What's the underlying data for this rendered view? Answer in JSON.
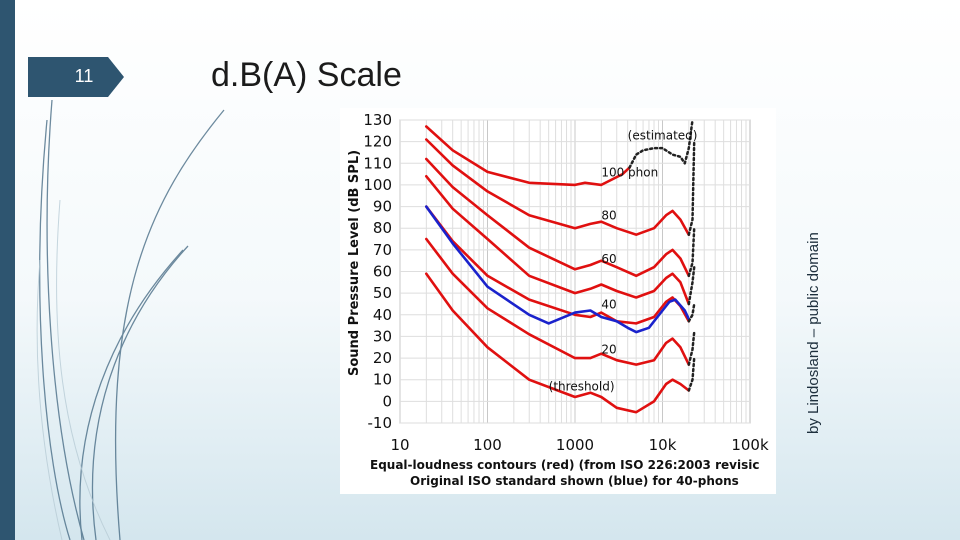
{
  "slide": {
    "number": "11",
    "title": "d.B(A) Scale",
    "attribution": "by Lindosland – public domain",
    "colors": {
      "sidebar": "#2e5570",
      "badge": "#2e5570",
      "red_curve": "#e01010",
      "blue_curve": "#1a22cc"
    }
  },
  "chart_data": {
    "type": "line",
    "ylabel": "Sound Pressure Level (dB SPL)",
    "x_scale": "log",
    "xlim": [
      10,
      100000
    ],
    "ylim": [
      -10,
      130
    ],
    "x_ticks": [
      "10",
      "100",
      "1000",
      "10k",
      "100k"
    ],
    "x_tick_values": [
      10,
      100,
      1000,
      10000,
      100000
    ],
    "y_ticks": [
      "130",
      "120",
      "110",
      "100",
      "90",
      "80",
      "70",
      "60",
      "50",
      "40",
      "30",
      "20",
      "10",
      "0",
      "-10"
    ],
    "y_tick_values": [
      130,
      120,
      110,
      100,
      90,
      80,
      70,
      60,
      50,
      40,
      30,
      20,
      10,
      0,
      -10
    ],
    "grid": true,
    "caption_line1": "Equal-loudness contours (red) (from ISO 226:2003 revisic",
    "caption_line2": "Original ISO standard shown (blue) for 40-phons",
    "annotations": [
      {
        "text": "(estimated)",
        "x": 4000,
        "y": 121
      },
      {
        "text": "100 phon",
        "x": 2000,
        "y": 104
      },
      {
        "text": "80",
        "x": 2000,
        "y": 84
      },
      {
        "text": "60",
        "x": 2000,
        "y": 64
      },
      {
        "text": "40",
        "x": 2000,
        "y": 43
      },
      {
        "text": "20",
        "x": 2000,
        "y": 22
      },
      {
        "text": "(threshold)",
        "x": 500,
        "y": 5
      }
    ],
    "series": [
      {
        "color": "#e01010",
        "points": [
          [
            20,
            127
          ],
          [
            40,
            116
          ],
          [
            100,
            106
          ],
          [
            300,
            101
          ],
          [
            1000,
            100
          ],
          [
            1300,
            101
          ],
          [
            2000,
            100
          ],
          [
            3500,
            105
          ],
          [
            4200,
            108
          ]
        ]
      },
      {
        "color": "#e01010",
        "points": [
          [
            20,
            121
          ],
          [
            40,
            109
          ],
          [
            100,
            97
          ],
          [
            300,
            86
          ],
          [
            1000,
            80
          ],
          [
            1500,
            82
          ],
          [
            2000,
            83
          ],
          [
            3000,
            80
          ],
          [
            5000,
            77
          ],
          [
            8000,
            80
          ],
          [
            11000,
            86
          ],
          [
            13000,
            88
          ],
          [
            16000,
            84
          ],
          [
            20000,
            77
          ]
        ]
      },
      {
        "color": "#e01010",
        "points": [
          [
            20,
            112
          ],
          [
            40,
            99
          ],
          [
            100,
            86
          ],
          [
            300,
            71
          ],
          [
            1000,
            61
          ],
          [
            1500,
            63
          ],
          [
            2000,
            65
          ],
          [
            3000,
            62
          ],
          [
            5000,
            58
          ],
          [
            8000,
            62
          ],
          [
            11000,
            68
          ],
          [
            13000,
            70
          ],
          [
            16000,
            66
          ],
          [
            20000,
            58
          ]
        ]
      },
      {
        "color": "#e01010",
        "points": [
          [
            20,
            104
          ],
          [
            40,
            89
          ],
          [
            100,
            75
          ],
          [
            300,
            58
          ],
          [
            1000,
            50
          ],
          [
            1500,
            52
          ],
          [
            2000,
            54
          ],
          [
            3000,
            51
          ],
          [
            5000,
            48
          ],
          [
            8000,
            51
          ],
          [
            11000,
            57
          ],
          [
            13000,
            59
          ],
          [
            16000,
            55
          ],
          [
            20000,
            45
          ]
        ]
      },
      {
        "color": "#e01010",
        "points": [
          [
            20,
            90
          ],
          [
            40,
            74
          ],
          [
            100,
            58
          ],
          [
            300,
            47
          ],
          [
            1000,
            40
          ],
          [
            1500,
            39
          ],
          [
            2000,
            41
          ],
          [
            3000,
            37
          ],
          [
            5000,
            36
          ],
          [
            8000,
            39
          ],
          [
            11000,
            46
          ],
          [
            13000,
            48
          ],
          [
            16000,
            44
          ],
          [
            20000,
            37
          ]
        ]
      },
      {
        "color": "#e01010",
        "points": [
          [
            20,
            75
          ],
          [
            40,
            59
          ],
          [
            100,
            43
          ],
          [
            300,
            31
          ],
          [
            1000,
            20
          ],
          [
            1500,
            20
          ],
          [
            2000,
            22
          ],
          [
            3000,
            19
          ],
          [
            5000,
            17
          ],
          [
            8000,
            19
          ],
          [
            11000,
            27
          ],
          [
            13000,
            29
          ],
          [
            16000,
            25
          ],
          [
            20000,
            17
          ]
        ]
      },
      {
        "color": "#e01010",
        "points": [
          [
            20,
            59
          ],
          [
            40,
            42
          ],
          [
            100,
            25
          ],
          [
            300,
            10
          ],
          [
            1000,
            2
          ],
          [
            1500,
            4
          ],
          [
            2000,
            2
          ],
          [
            3000,
            -3
          ],
          [
            5000,
            -5
          ],
          [
            8000,
            0
          ],
          [
            11000,
            8
          ],
          [
            13000,
            10
          ],
          [
            16000,
            8
          ],
          [
            20000,
            5
          ]
        ]
      },
      {
        "color": "#1a22cc",
        "points": [
          [
            20,
            90
          ],
          [
            40,
            73
          ],
          [
            100,
            53
          ],
          [
            300,
            40
          ],
          [
            500,
            36
          ],
          [
            1000,
            41
          ],
          [
            1500,
            42
          ],
          [
            2000,
            39
          ],
          [
            3000,
            37
          ],
          [
            4000,
            34
          ],
          [
            5000,
            32
          ],
          [
            7000,
            34
          ],
          [
            10000,
            42
          ],
          [
            12000,
            46
          ],
          [
            14000,
            47
          ],
          [
            18000,
            42
          ],
          [
            20000,
            38
          ]
        ]
      },
      {
        "color": "#222222",
        "dashed": true,
        "points": [
          [
            4200,
            108
          ],
          [
            5000,
            114
          ],
          [
            6000,
            116
          ],
          [
            8000,
            117
          ],
          [
            10000,
            117
          ],
          [
            13000,
            114
          ],
          [
            16000,
            113
          ],
          [
            18000,
            110
          ],
          [
            20000,
            117
          ],
          [
            22000,
            130
          ]
        ]
      },
      {
        "color": "#222222",
        "dashed": true,
        "points": [
          [
            20000,
            77
          ],
          [
            22000,
            84
          ],
          [
            23000,
            120
          ]
        ]
      },
      {
        "color": "#222222",
        "dashed": true,
        "points": [
          [
            20000,
            58
          ],
          [
            22000,
            64
          ],
          [
            23000,
            80
          ]
        ]
      },
      {
        "color": "#222222",
        "dashed": true,
        "points": [
          [
            20000,
            45
          ],
          [
            22000,
            55
          ],
          [
            23000,
            62
          ]
        ]
      },
      {
        "color": "#222222",
        "dashed": true,
        "points": [
          [
            20000,
            37
          ],
          [
            22000,
            40
          ],
          [
            23000,
            45
          ]
        ]
      },
      {
        "color": "#222222",
        "dashed": true,
        "points": [
          [
            20000,
            17
          ],
          [
            22000,
            24
          ],
          [
            23000,
            32
          ]
        ]
      },
      {
        "color": "#222222",
        "dashed": true,
        "points": [
          [
            20000,
            5
          ],
          [
            22000,
            10
          ],
          [
            23000,
            20
          ]
        ]
      }
    ]
  }
}
